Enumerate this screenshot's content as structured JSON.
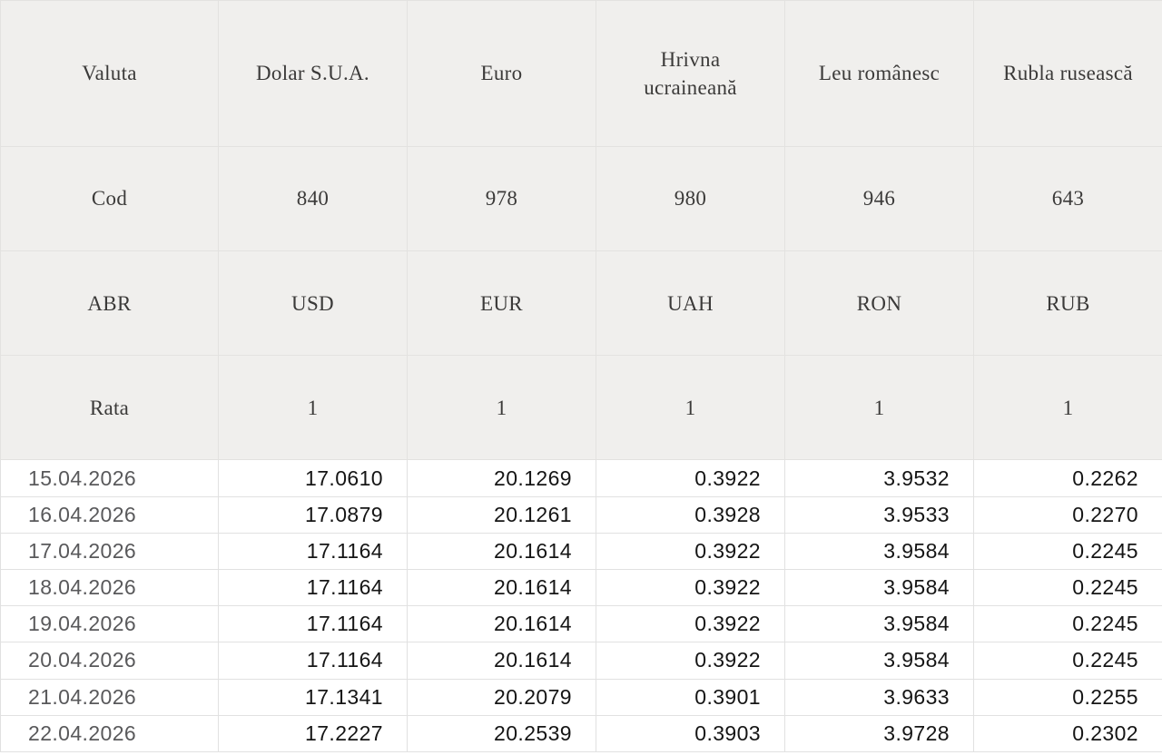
{
  "colors": {
    "header_bg": "#f0efed",
    "header_border": "#e3e2e0",
    "data_border": "#e1e1e1",
    "header_text": "#3b3a39",
    "date_text": "#59595b",
    "value_text": "#151515"
  },
  "table": {
    "meta_rows": [
      {
        "label": "Valuta",
        "cells": [
          "Dolar S.U.A.",
          "Euro",
          "Hrivna ucraineană",
          "Leu românesc",
          "Rubla rusească"
        ]
      },
      {
        "label": "Cod",
        "cells": [
          "840",
          "978",
          "980",
          "946",
          "643"
        ]
      },
      {
        "label": "ABR",
        "cells": [
          "USD",
          "EUR",
          "UAH",
          "RON",
          "RUB"
        ]
      },
      {
        "label": "Rata",
        "cells": [
          "1",
          "1",
          "1",
          "1",
          "1"
        ]
      }
    ],
    "rate_rows": [
      {
        "date": "15.04.2026",
        "values": [
          "17.0610",
          "20.1269",
          "0.3922",
          "3.9532",
          "0.2262"
        ]
      },
      {
        "date": "16.04.2026",
        "values": [
          "17.0879",
          "20.1261",
          "0.3928",
          "3.9533",
          "0.2270"
        ]
      },
      {
        "date": "17.04.2026",
        "values": [
          "17.1164",
          "20.1614",
          "0.3922",
          "3.9584",
          "0.2245"
        ]
      },
      {
        "date": "18.04.2026",
        "values": [
          "17.1164",
          "20.1614",
          "0.3922",
          "3.9584",
          "0.2245"
        ]
      },
      {
        "date": "19.04.2026",
        "values": [
          "17.1164",
          "20.1614",
          "0.3922",
          "3.9584",
          "0.2245"
        ]
      },
      {
        "date": "20.04.2026",
        "values": [
          "17.1164",
          "20.1614",
          "0.3922",
          "3.9584",
          "0.2245"
        ]
      },
      {
        "date": "21.04.2026",
        "values": [
          "17.1341",
          "20.2079",
          "0.3901",
          "3.9633",
          "0.2255"
        ]
      },
      {
        "date": "22.04.2026",
        "values": [
          "17.2227",
          "20.2539",
          "0.3903",
          "3.9728",
          "0.2302"
        ]
      }
    ]
  }
}
